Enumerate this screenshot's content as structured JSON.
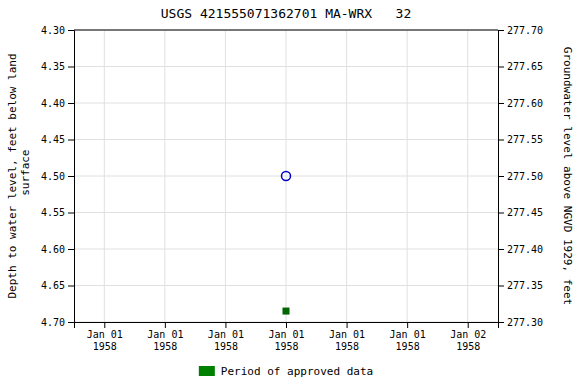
{
  "chart_data": {
    "type": "scatter",
    "title": "USGS 421555071362701 MA-WRX   32",
    "y_label": "Depth to water level, feet below land\n surface",
    "y2_label": "Groundwater level above NGVD 1929, feet",
    "categories": [
      "Jan 01\n1958",
      "Jan 01\n1958",
      "Jan 01\n1958",
      "Jan 01\n1958",
      "Jan 01\n1958",
      "Jan 01\n1958",
      "Jan 02\n1958"
    ],
    "ylim": [
      4.7,
      4.3
    ],
    "yticks": [
      {
        "value": 4.3,
        "label": "4.30"
      },
      4.35,
      {
        "value": 4.4,
        "label": "4.40"
      },
      4.45,
      {
        "value": 4.5,
        "label": "4.50"
      },
      4.55,
      {
        "value": 4.6,
        "label": "4.60"
      },
      4.65,
      {
        "value": 4.7,
        "label": "4.70"
      }
    ],
    "y2lim": [
      277.3,
      277.7
    ],
    "y2ticks": [
      {
        "value": 277.7,
        "label": "277.70"
      },
      277.65,
      {
        "value": 277.6,
        "label": "277.60"
      },
      277.55,
      {
        "value": 277.5,
        "label": "277.50"
      },
      277.45,
      {
        "value": 277.4,
        "label": "277.40"
      },
      277.35,
      {
        "value": 277.3,
        "label": "277.30"
      }
    ],
    "grid": true,
    "legend": "bottom",
    "series": [
      {
        "color": "#0000cc",
        "marker": "circle",
        "values": [
          null,
          null,
          null,
          4.5,
          null,
          null,
          null
        ]
      },
      {
        "color": "#006400",
        "marker": "square",
        "values": [
          null,
          null,
          null,
          4.685,
          null,
          null,
          null
        ]
      },
      {
        "name": "Period of approved data",
        "color": "#008000",
        "values": [
          null,
          null,
          null,
          null,
          null,
          null,
          null
        ]
      }
    ]
  }
}
